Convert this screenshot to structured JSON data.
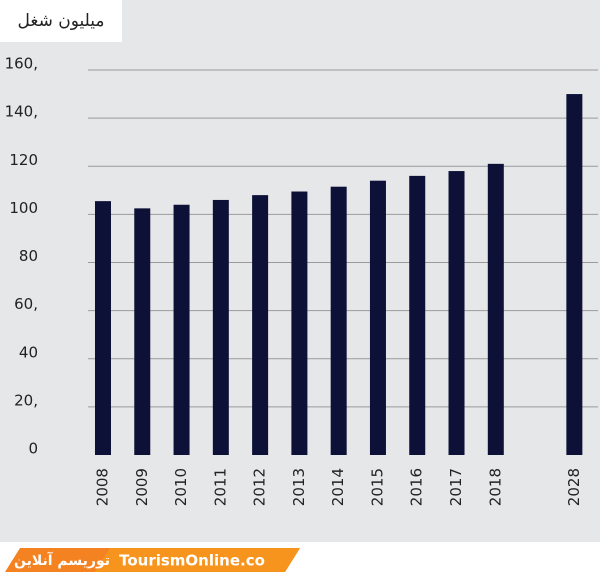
{
  "chart_data": {
    "type": "bar",
    "title": "میلیون شغل",
    "categories": [
      "2008",
      "2009",
      "2010",
      "2011",
      "2012",
      "2013",
      "2014",
      "2015",
      "2016",
      "2017",
      "2018",
      null,
      "2028"
    ],
    "values": [
      105.5,
      102.5,
      104,
      106,
      108,
      109.5,
      111.5,
      114,
      116,
      118,
      121,
      null,
      150
    ],
    "color": "#0d1137",
    "ylim": [
      0,
      160
    ],
    "yticks": [
      0,
      {
        "value": 20,
        "label": "20,"
      },
      40,
      {
        "value": 60,
        "label": "60,"
      },
      80,
      100,
      120,
      {
        "value": 140,
        "label": "140,"
      },
      {
        "value": 160,
        "label": "160,"
      }
    ],
    "grid": true
  },
  "footer": {
    "brand_fa": "توریسم آنلاین",
    "brand_en": "TourismOnline.co"
  }
}
